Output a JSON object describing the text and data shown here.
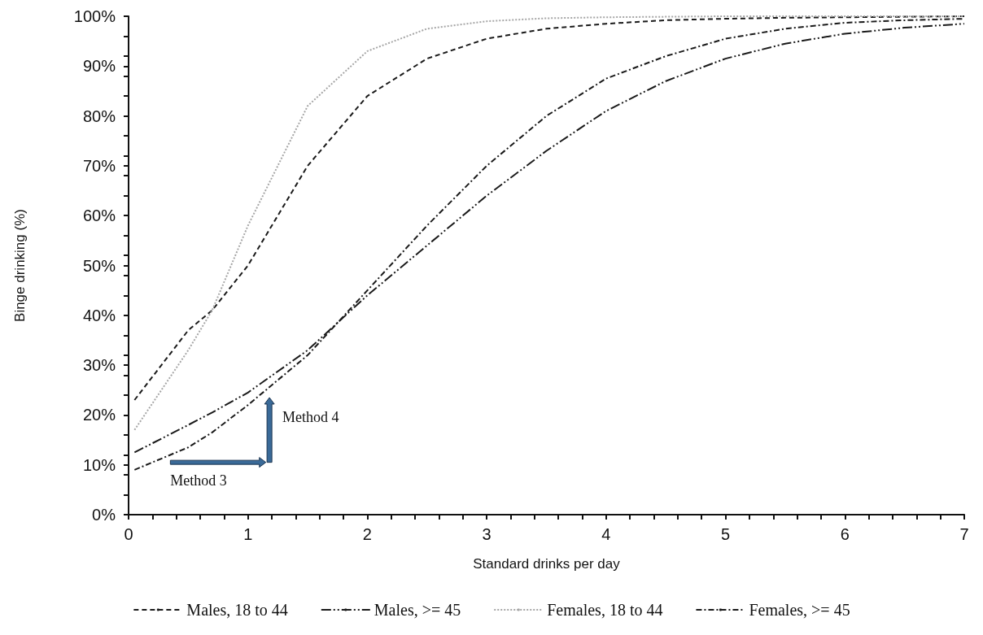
{
  "chart_data": {
    "type": "line",
    "xlabel": "Standard drinks per day",
    "ylabel": "Binge drinking (%)",
    "xlim": [
      0,
      7
    ],
    "xticks": [
      0,
      1,
      2,
      3,
      4,
      5,
      6,
      7
    ],
    "ylim": [
      0,
      100
    ],
    "yticks": [
      {
        "value": 0,
        "label": "0%"
      },
      {
        "value": 10,
        "label": "10%"
      },
      {
        "value": 20,
        "label": "20%"
      },
      {
        "value": 30,
        "label": "30%"
      },
      {
        "value": 40,
        "label": "40%"
      },
      {
        "value": 50,
        "label": "50%"
      },
      {
        "value": 60,
        "label": "60%"
      },
      {
        "value": 70,
        "label": "70%"
      },
      {
        "value": 80,
        "label": "80%"
      },
      {
        "value": 90,
        "label": "90%"
      },
      {
        "value": 100,
        "label": "100%"
      }
    ],
    "x": [
      0.05,
      0.5,
      0.7,
      1,
      1.5,
      2,
      2.5,
      3,
      3.5,
      4,
      4.5,
      5,
      5.5,
      6,
      6.5,
      7
    ],
    "series": [
      {
        "name": "Males, 18 to 44",
        "color": "#1a1a1a",
        "line_style": "dashed",
        "values": [
          23,
          37,
          41,
          50,
          70,
          84,
          91.5,
          95.5,
          97.5,
          98.5,
          99.2,
          99.5,
          99.7,
          99.8,
          99.9,
          100
        ]
      },
      {
        "name": "Males, >= 45",
        "color": "#1a1a1a",
        "line_style": "dashed",
        "values": [
          12.5,
          18,
          20.5,
          24.5,
          33,
          44,
          54,
          64,
          73,
          81,
          87,
          91.5,
          94.5,
          96.5,
          97.7,
          98.5
        ]
      },
      {
        "name": "Females, 18 to 44",
        "color": "#a6a6a6",
        "line_style": "dotted",
        "values": [
          17,
          33,
          41,
          58,
          82,
          93,
          97.5,
          99,
          99.6,
          99.8,
          99.9,
          100,
          100,
          100,
          100,
          100
        ]
      },
      {
        "name": "Females, >= 45",
        "color": "#1a1a1a",
        "line_style": "dashed",
        "values": [
          9,
          13.5,
          16.5,
          22,
          32,
          45,
          58,
          70,
          80,
          87.5,
          92,
          95.5,
          97.5,
          98.7,
          99.2,
          99.5
        ]
      }
    ],
    "annotations": [
      "Method 3",
      "Method 4"
    ],
    "grid": false,
    "legend": "bottom",
    "marker": "none"
  }
}
